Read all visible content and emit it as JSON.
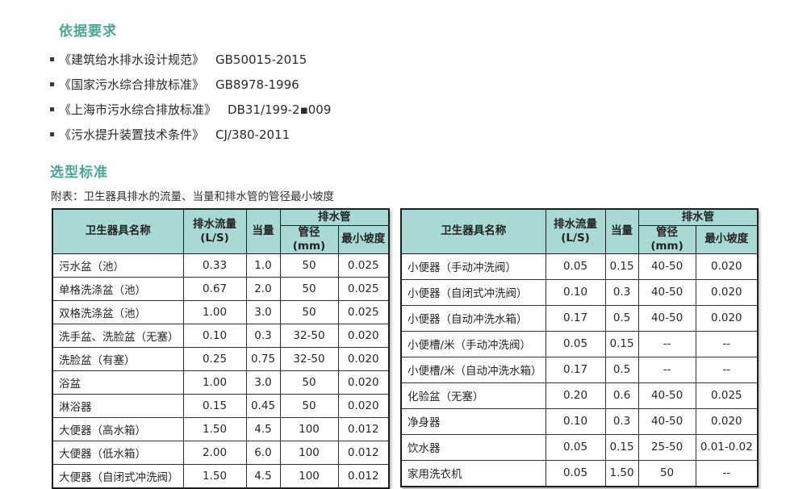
{
  "sections": {
    "basis_title": "依据要求",
    "selection_title": "选型标准",
    "table_caption": "附表：卫生器具排水的流量、当量和排水管的管径最小坡度"
  },
  "references": [
    {
      "title": "《建筑给水排水设计规范》",
      "code": "GB50015-2015"
    },
    {
      "title": "《国家污水综合排放标准》",
      "code": "GB8978-1996"
    },
    {
      "title": "《上海市污水综合排放标准》",
      "code": "DB31/199-2▪009"
    },
    {
      "title": "《污水提升装置技术条件》",
      "code": "CJ/380-2011"
    }
  ],
  "headers": {
    "fixture": "卫生器具名称",
    "flow_line1": "排水流量",
    "flow_line2": "(L/S)",
    "equivalent": "当量",
    "drain_pipe": "排水管",
    "diameter": "管径(mm)",
    "min_slope": "最小坡度"
  },
  "colors": {
    "heading_teal": "#49a897",
    "header_bg": "#a8d9d4"
  },
  "chart_data": [
    {
      "type": "table",
      "title": "卫生器具排水的流量、当量和排水管的管径最小坡度（左表）",
      "columns": [
        "卫生器具名称",
        "排水流量(L/S)",
        "当量",
        "管径(mm)",
        "最小坡度"
      ],
      "rows": [
        {
          "name": "污水盆（池）",
          "flow": "0.33",
          "eq": "1.0",
          "dia": "50",
          "slope": "0.025"
        },
        {
          "name": "单格洗涤盆（池）",
          "flow": "0.67",
          "eq": "2.0",
          "dia": "50",
          "slope": "0.025"
        },
        {
          "name": "双格洗涤盆（池）",
          "flow": "1.00",
          "eq": "3.0",
          "dia": "50",
          "slope": "0.025"
        },
        {
          "name": "洗手盆、洗脸盆（无塞）",
          "flow": "0.10",
          "eq": "0.3",
          "dia": "32-50",
          "slope": "0.020"
        },
        {
          "name": "洗脸盆（有塞）",
          "flow": "0.25",
          "eq": "0.75",
          "dia": "32-50",
          "slope": "0.020"
        },
        {
          "name": "浴盆",
          "flow": "1.00",
          "eq": "3.0",
          "dia": "50",
          "slope": "0.020"
        },
        {
          "name": "淋浴器",
          "flow": "0.15",
          "eq": "0.45",
          "dia": "50",
          "slope": "0.020"
        },
        {
          "name": "大便器（高水箱）",
          "flow": "1.50",
          "eq": "4.5",
          "dia": "100",
          "slope": "0.012"
        },
        {
          "name": "大便器（低水箱）",
          "flow": "2.00",
          "eq": "6.0",
          "dia": "100",
          "slope": "0.012"
        },
        {
          "name": "大便器（自闭式冲洗阀）",
          "flow": "1.50",
          "eq": "4.5",
          "dia": "100",
          "slope": "0.012"
        }
      ]
    },
    {
      "type": "table",
      "title": "卫生器具排水的流量、当量和排水管的管径最小坡度（右表）",
      "columns": [
        "卫生器具名称",
        "排水流量(L/S)",
        "当量",
        "管径(mm)",
        "最小坡度"
      ],
      "rows": [
        {
          "name": "小便器（手动冲洗阀）",
          "flow": "0.05",
          "eq": "0.15",
          "dia": "40-50",
          "slope": "0.020"
        },
        {
          "name": "小便器（自闭式冲洗阀）",
          "flow": "0.10",
          "eq": "0.3",
          "dia": "40-50",
          "slope": "0.020"
        },
        {
          "name": "小便器（自动冲洗水箱）",
          "flow": "0.17",
          "eq": "0.5",
          "dia": "40-50",
          "slope": "0.020"
        },
        {
          "name": "小便槽/米（手动冲洗阀）",
          "flow": "0.05",
          "eq": "0.15",
          "dia": "--",
          "slope": "--"
        },
        {
          "name": "小便槽/米（自动冲洗水箱）",
          "flow": "0.17",
          "eq": "0.5",
          "dia": "--",
          "slope": "--"
        },
        {
          "name": "化验盆（无塞）",
          "flow": "0.20",
          "eq": "0.6",
          "dia": "40-50",
          "slope": "0.025"
        },
        {
          "name": "净身器",
          "flow": "0.10",
          "eq": "0.3",
          "dia": "40-50",
          "slope": "0.020"
        },
        {
          "name": "饮水器",
          "flow": "0.05",
          "eq": "0.15",
          "dia": "25-50",
          "slope": "0.01-0.02"
        },
        {
          "name": "家用洗衣机",
          "flow": "0.05",
          "eq": "1.50",
          "dia": "50",
          "slope": "--"
        }
      ]
    }
  ]
}
